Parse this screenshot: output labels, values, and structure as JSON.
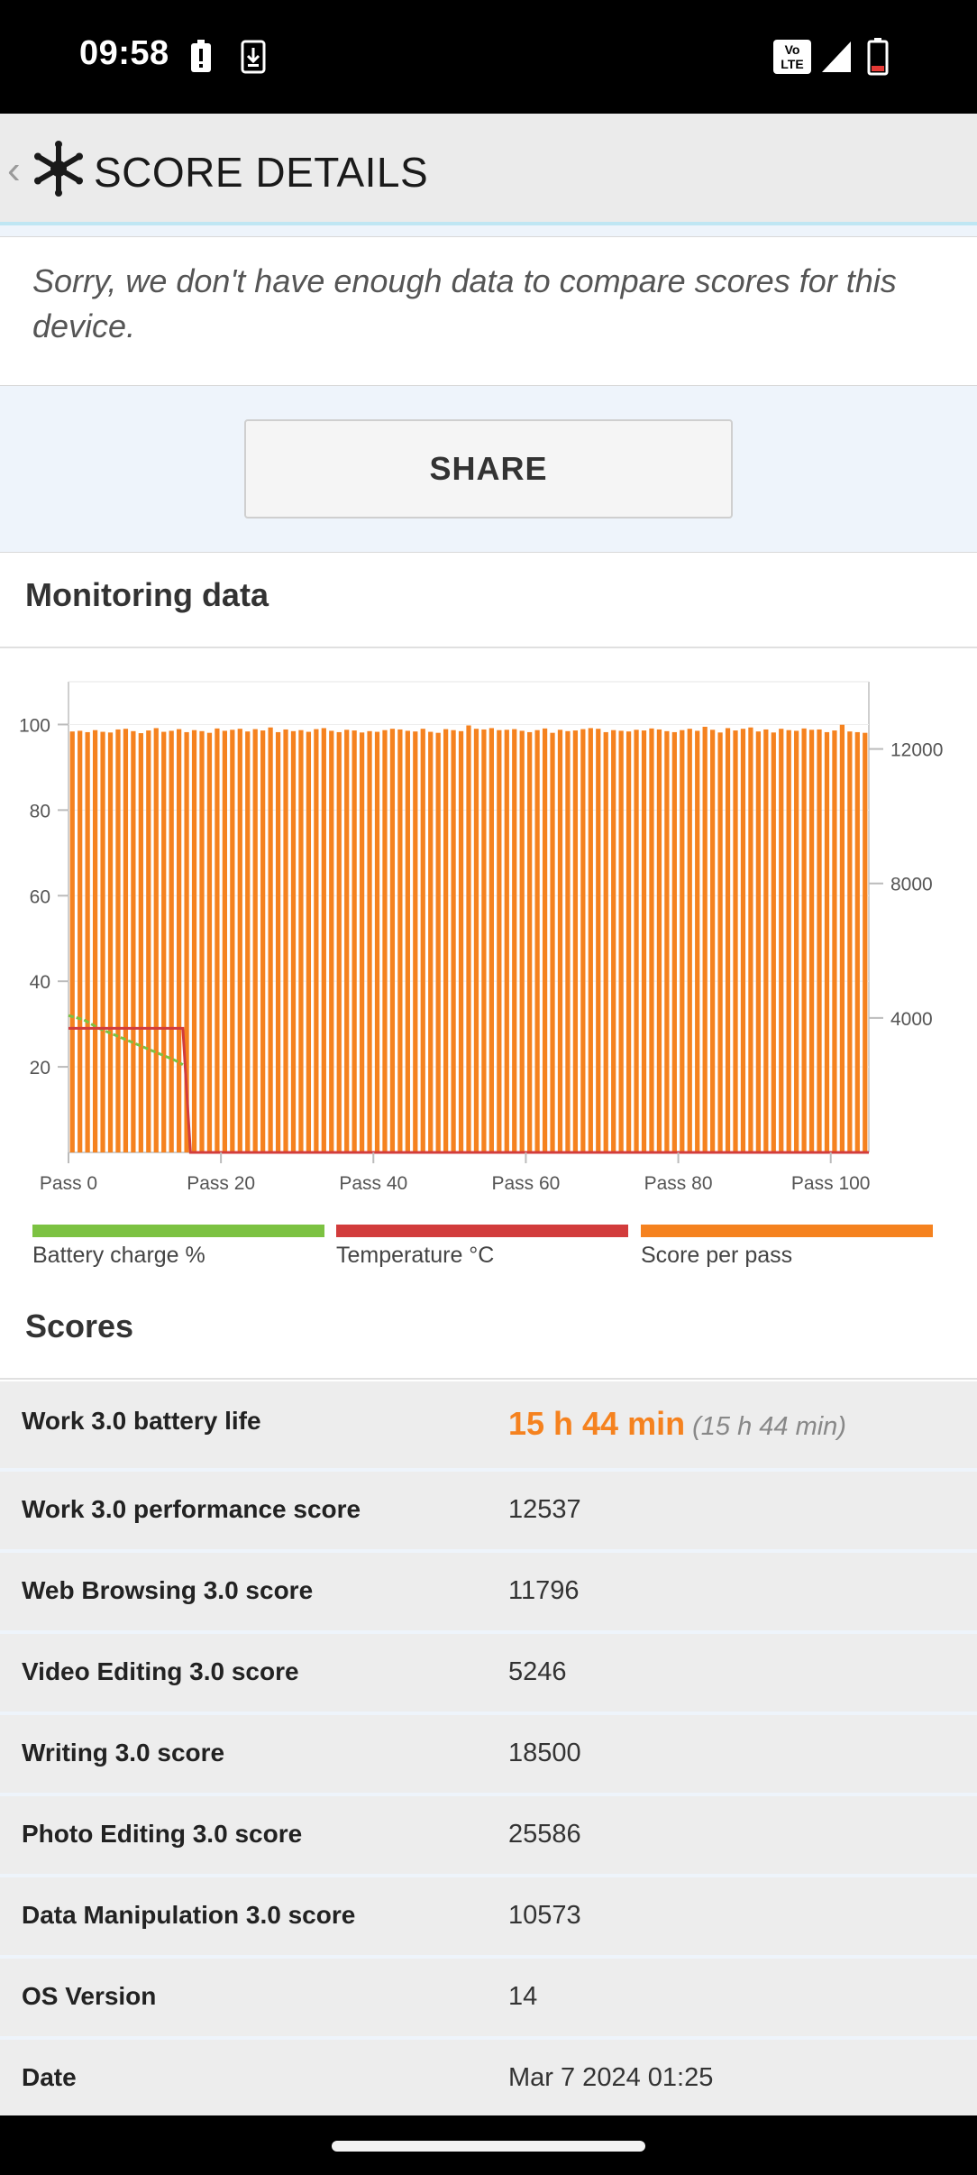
{
  "status_bar": {
    "time": "09:58",
    "icons": [
      "alert-icon",
      "download-icon",
      "volte-icon",
      "signal-icon",
      "battery-low-icon"
    ],
    "volte_text": "Vo LTE"
  },
  "app_bar": {
    "back_glyph": "‹",
    "title": "SCORE DETAILS",
    "logo_icon": "snowflake-icon"
  },
  "compare_notice": "Sorry, we don't have enough data to compare scores for this device.",
  "share_label": "SHARE",
  "monitoring": {
    "title": "Monitoring data",
    "legend": [
      {
        "label": "Battery charge %",
        "color": "#7cc242"
      },
      {
        "label": "Temperature °C",
        "color": "#d23c3c"
      },
      {
        "label": "Score per pass",
        "color": "#f5821f"
      }
    ]
  },
  "chart_data": {
    "type": "bar",
    "x_tick_labels": [
      "Pass 0",
      "Pass 20",
      "Pass 40",
      "Pass 60",
      "Pass 80",
      "Pass 100"
    ],
    "y_left_ticks": [
      20,
      40,
      60,
      80,
      100
    ],
    "y_left_range": [
      0,
      110
    ],
    "y_right_ticks": [
      4000,
      8000,
      12000
    ],
    "y_right_range": [
      0,
      14000
    ],
    "x_range": [
      0,
      105
    ],
    "series": [
      {
        "name": "Score per pass",
        "axis": "right",
        "color": "#f5821f",
        "values": [
          12520,
          12540,
          12500,
          12560,
          12510,
          12490,
          12580,
          12600,
          12530,
          12470,
          12550,
          12620,
          12510,
          12540,
          12590,
          12500,
          12560,
          12530,
          12480,
          12610,
          12540,
          12570,
          12600,
          12520,
          12590,
          12550,
          12640,
          12500,
          12580,
          12530,
          12560,
          12510,
          12590,
          12620,
          12540,
          12500,
          12570,
          12550,
          12490,
          12530,
          12510,
          12560,
          12600,
          12580,
          12540,
          12520,
          12600,
          12510,
          12480,
          12590,
          12560,
          12530,
          12700,
          12600,
          12580,
          12620,
          12560,
          12570,
          12590,
          12540,
          12500,
          12560,
          12610,
          12480,
          12570,
          12530,
          12550,
          12590,
          12620,
          12600,
          12500,
          12560,
          12540,
          12520,
          12570,
          12550,
          12610,
          12580,
          12530,
          12500,
          12560,
          12600,
          12540,
          12660,
          12570,
          12490,
          12620,
          12550,
          12600,
          12640,
          12520,
          12580,
          12490,
          12600,
          12560,
          12540,
          12610,
          12570,
          12580,
          12500,
          12550,
          12720,
          12520,
          12500,
          12480
        ]
      },
      {
        "name": "Battery charge %",
        "axis": "left",
        "color": "#7cc242",
        "x": [
          0,
          2,
          4,
          6,
          8,
          10,
          12,
          14,
          15
        ],
        "values": [
          32,
          31,
          29,
          27.5,
          26,
          24.5,
          23,
          21.5,
          20.5
        ]
      },
      {
        "name": "Temperature °C",
        "axis": "left",
        "color": "#d23c3c",
        "x": [
          0,
          15,
          16,
          105
        ],
        "values": [
          29,
          29,
          0,
          0
        ]
      }
    ],
    "grid": true
  },
  "scores": {
    "title": "Scores",
    "rows": [
      {
        "label": "Work 3.0 battery life",
        "value": "15 h 44 min",
        "secondary": "(15 h 44 min)"
      },
      {
        "label": "Work 3.0 performance score",
        "value": "12537"
      },
      {
        "label": "Web Browsing 3.0 score",
        "value": "11796"
      },
      {
        "label": "Video Editing 3.0 score",
        "value": "5246"
      },
      {
        "label": "Writing 3.0 score",
        "value": "18500"
      },
      {
        "label": "Photo Editing 3.0 score",
        "value": "25586"
      },
      {
        "label": "Data Manipulation 3.0 score",
        "value": "10573"
      },
      {
        "label": "OS Version",
        "value": "14"
      },
      {
        "label": "Date",
        "value": "Mar 7 2024 01:25"
      }
    ]
  }
}
